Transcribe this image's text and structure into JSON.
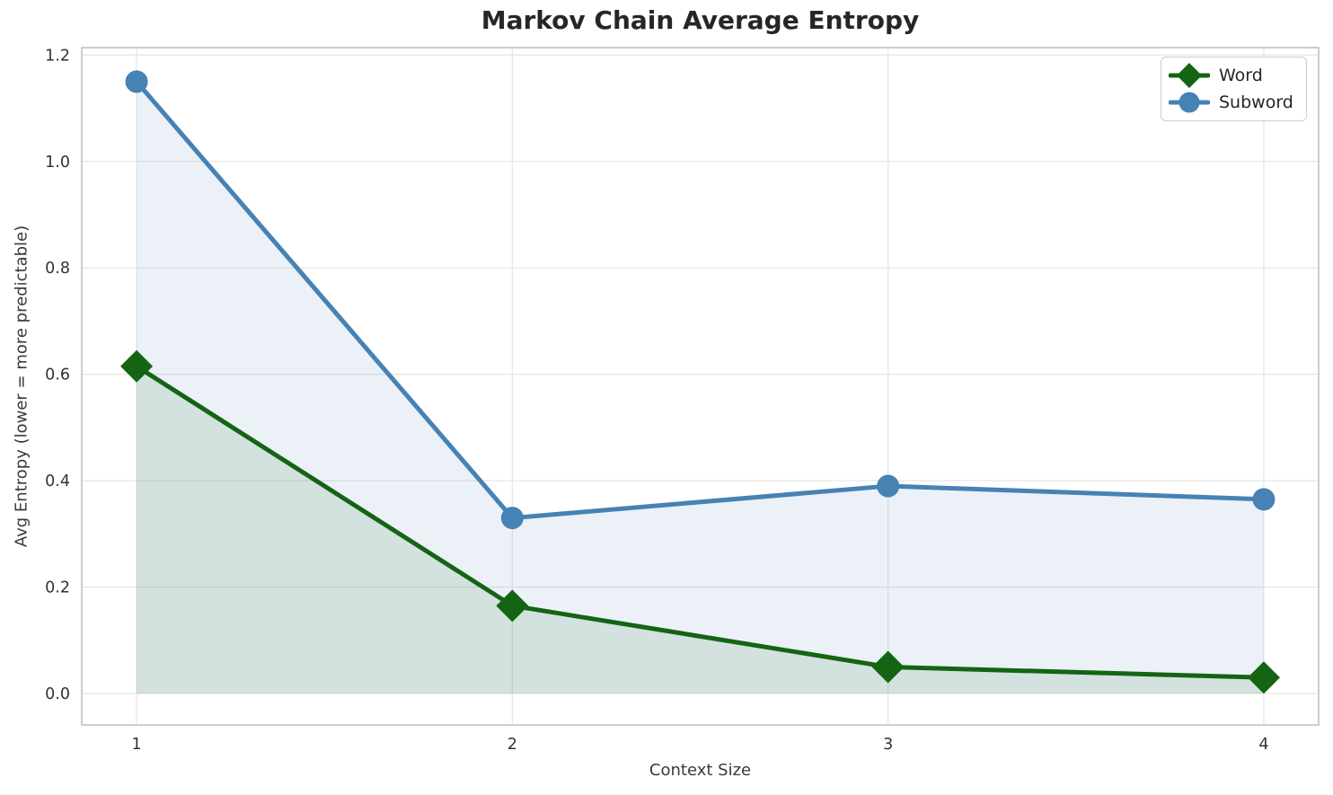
{
  "chart_data": {
    "type": "line",
    "title": "Markov Chain Average Entropy",
    "xlabel": "Context Size",
    "ylabel": "Avg Entropy (lower = more predictable)",
    "x": [
      1,
      2,
      3,
      4
    ],
    "series": [
      {
        "name": "Word",
        "values": [
          0.615,
          0.165,
          0.05,
          0.03
        ],
        "color": "#146414",
        "marker": "diamond",
        "area_fill": true
      },
      {
        "name": "Subword",
        "values": [
          1.15,
          0.33,
          0.39,
          0.365
        ],
        "color": "#4682b4",
        "marker": "circle",
        "area_fill": true
      }
    ],
    "xticks": [
      "1",
      "2",
      "3",
      "4"
    ],
    "yticks": [
      "0.0",
      "0.2",
      "0.4",
      "0.6",
      "0.8",
      "1.0",
      "1.2"
    ],
    "ytick_values": [
      0.0,
      0.2,
      0.4,
      0.6,
      0.8,
      1.0,
      1.2
    ],
    "xlim": [
      0.854,
      4.146
    ],
    "ylim": [
      -0.059,
      1.214
    ],
    "grid": true,
    "legend_position": "top-right",
    "colors": {
      "grid": "#e7e7e7",
      "spine": "#c8c8c8",
      "tick_text": "#333333",
      "title_text": "#262626",
      "fill_opacity": "0.11"
    }
  }
}
